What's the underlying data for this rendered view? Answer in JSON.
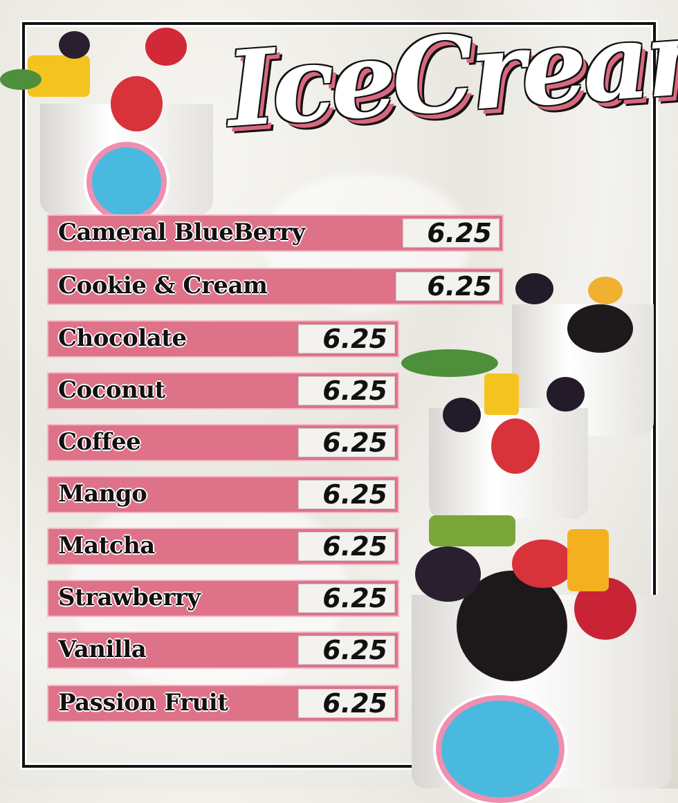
{
  "title": "IceCream",
  "colors": {
    "accent": "#de7289",
    "price_bg": "#f4f2ee",
    "text": "#111111",
    "border": "#111111"
  },
  "menu": [
    {
      "name": "Cameral BlueBerry",
      "price": "6.25"
    },
    {
      "name": "Cookie & Cream",
      "price": "6.25"
    },
    {
      "name": "Chocolate",
      "price": "6.25"
    },
    {
      "name": "Coconut",
      "price": "6.25"
    },
    {
      "name": "Coffee",
      "price": "6.25"
    },
    {
      "name": "Mango",
      "price": "6.25"
    },
    {
      "name": "Matcha",
      "price": "6.25"
    },
    {
      "name": "Strawberry",
      "price": "6.25"
    },
    {
      "name": "Vanilla",
      "price": "6.25"
    },
    {
      "name": "Passion Fruit",
      "price": "6.25"
    }
  ]
}
